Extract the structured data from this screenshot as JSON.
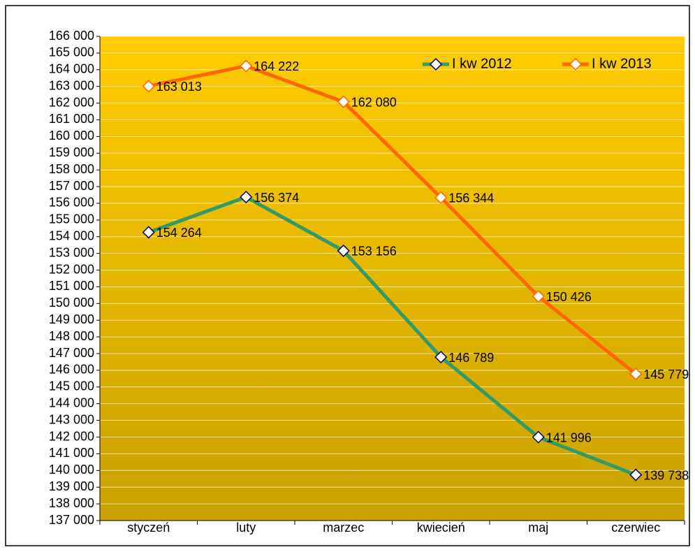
{
  "chart_data": {
    "type": "line",
    "categories": [
      "styczeń",
      "luty",
      "marzec",
      "kwiecień",
      "maj",
      "czerwiec"
    ],
    "series": [
      {
        "name": "I kw 2012",
        "color": "#339966",
        "marker_edge": "#000066",
        "values": [
          154264,
          156374,
          153156,
          146789,
          141996,
          139738
        ],
        "value_labels": [
          "154 264",
          "156 374",
          "153 156",
          "146 789",
          "141 996",
          "139 738"
        ]
      },
      {
        "name": "I kw 2013",
        "color": "#ff6600",
        "marker_edge": "#ff6600",
        "values": [
          163013,
          164222,
          162080,
          156344,
          150426,
          145779
        ],
        "value_labels": [
          "163 013",
          "164 222",
          "162 080",
          "156 344",
          "150 426",
          "145 779"
        ]
      }
    ],
    "ylim": [
      137000,
      166000
    ],
    "yticks": [
      {
        "value": 137000,
        "label": "137 000"
      },
      {
        "value": 138000,
        "label": "138 000"
      },
      {
        "value": 139000,
        "label": "139 000"
      },
      {
        "value": 140000,
        "label": "140 000"
      },
      {
        "value": 141000,
        "label": "141 000"
      },
      {
        "value": 142000,
        "label": "142 000"
      },
      {
        "value": 143000,
        "label": "143 000"
      },
      {
        "value": 144000,
        "label": "144 000"
      },
      {
        "value": 145000,
        "label": "145 000"
      },
      {
        "value": 146000,
        "label": "146 000"
      },
      {
        "value": 147000,
        "label": "147 000"
      },
      {
        "value": 148000,
        "label": "148 000"
      },
      {
        "value": 149000,
        "label": "149 000"
      },
      {
        "value": 150000,
        "label": "150 000"
      },
      {
        "value": 151000,
        "label": "151 000"
      },
      {
        "value": 152000,
        "label": "152 000"
      },
      {
        "value": 153000,
        "label": "153 000"
      },
      {
        "value": 154000,
        "label": "154 000"
      },
      {
        "value": 155000,
        "label": "155 000"
      },
      {
        "value": 156000,
        "label": "156 000"
      },
      {
        "value": 157000,
        "label": "157 000"
      },
      {
        "value": 158000,
        "label": "158 000"
      },
      {
        "value": 159000,
        "label": "159 000"
      },
      {
        "value": 160000,
        "label": "160 000"
      },
      {
        "value": 161000,
        "label": "161 000"
      },
      {
        "value": 162000,
        "label": "162 000"
      },
      {
        "value": 163000,
        "label": "163 000"
      },
      {
        "value": 164000,
        "label": "164 000"
      },
      {
        "value": 165000,
        "label": "165 000"
      },
      {
        "value": 166000,
        "label": "166 000"
      }
    ],
    "grid": true,
    "legend": "top-right"
  }
}
